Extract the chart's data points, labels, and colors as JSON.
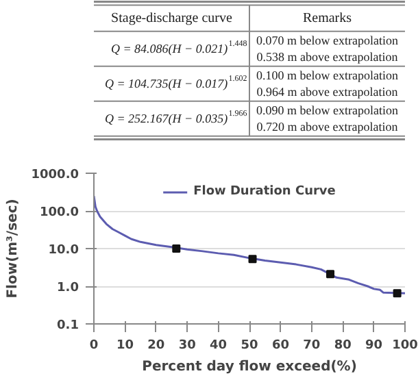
{
  "chart_data": [
    {
      "type": "other",
      "annotations": [
        "Stage-discharge curve",
        "Remarks",
        "Q = 84.086(H − 0.021)$^{1.448}$",
        "0.070 m below extrapolation",
        "0.538 m above extrapolation",
        "Q = 104.735(H − 0.017)$^{1.602}$",
        "0.100 m below extrapolation",
        "0.964 m above extrapolation",
        "Q = 252.167(H − 0.035)$^{1.966}$",
        "0.090 m below extrapolation",
        "0.720 m above extrapolation"
      ]
    },
    {
      "type": "line",
      "xlabel": "Percent day flow exceed(%)",
      "ylabel": "Flow(m³/sec)",
      "log": "y",
      "grid": "y",
      "legend": "top",
      "xlim": [
        0,
        100
      ],
      "xticks": [
        0,
        10,
        20,
        30,
        40,
        50,
        60,
        70,
        80,
        90,
        100
      ],
      "ylim": [
        0.1,
        1000
      ],
      "yticks": [
        {
          "value": 0.1,
          "label": "0.1"
        },
        {
          "value": 1,
          "label": "1.0"
        },
        {
          "value": 10,
          "label": "10.0"
        },
        {
          "value": 100,
          "label": "100.0"
        },
        {
          "value": 1000,
          "label": "1000.0"
        }
      ],
      "series": [
        {
          "name": "Flow Duration Curve",
          "color": "#5c5cb0",
          "marker": "none",
          "x": [
            0,
            0.5,
            1,
            2,
            4,
            6,
            8,
            10,
            12,
            15,
            20,
            25,
            30,
            35,
            40,
            45,
            50,
            55,
            60,
            65,
            70,
            73,
            75,
            78,
            82,
            85,
            88,
            90,
            92,
            93,
            100
          ],
          "values": [
            250,
            130,
            100,
            70,
            45,
            33,
            27,
            22,
            18,
            15,
            12.5,
            11,
            9.5,
            8.5,
            7.5,
            6.8,
            5.6,
            4.8,
            4.3,
            3.8,
            3.2,
            2.8,
            2.3,
            1.7,
            1.5,
            1.2,
            1.0,
            0.85,
            0.8,
            0.68,
            0.65
          ]
        },
        {
          "type": "scatter",
          "color": "#111111",
          "marker": "square",
          "x": [
            26.5,
            51,
            76,
            97.5
          ],
          "values": [
            10,
            5.3,
            2.1,
            0.65
          ]
        }
      ]
    }
  ]
}
